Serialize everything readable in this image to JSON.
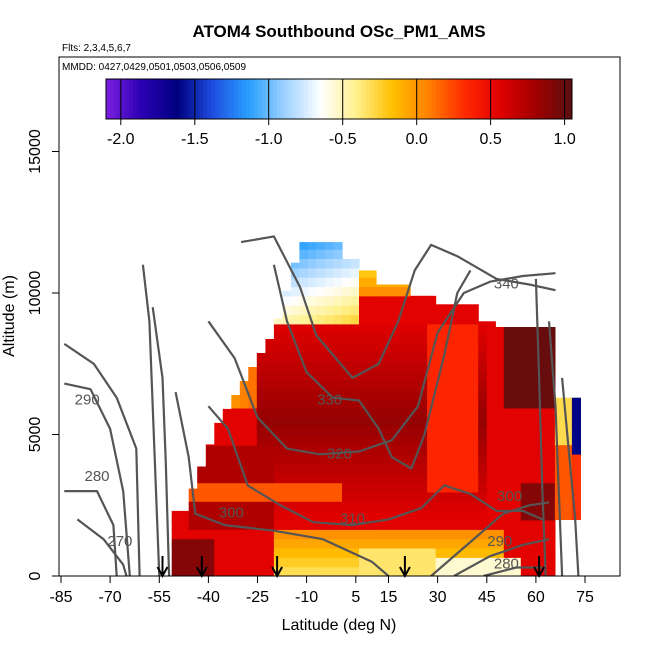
{
  "chart_data": {
    "type": "heatmap",
    "title": "ATOM4 Southbound OSc_PM1_AMS",
    "annotations": [
      "Flts: 2,3,4,5,6,7",
      "MMDD: 0427,0429,0501,0503,0506,0509"
    ],
    "xlabel": "Latitude (deg N)",
    "ylabel": "Altitude (m)",
    "xlim": [
      -85,
      85
    ],
    "ylim": [
      0,
      17500
    ],
    "x_ticks": [
      -85,
      -70,
      -55,
      -40,
      -25,
      -10,
      5,
      15,
      30,
      45,
      60,
      75
    ],
    "y_ticks": [
      0,
      5000,
      10000,
      15000
    ],
    "colorbar": {
      "ticks": [
        "-2.0",
        "-1.5",
        "-1.0",
        "-0.5",
        "0.0",
        "0.5",
        "1.0"
      ],
      "range": [
        -2.1,
        1.05
      ],
      "colors": [
        "#7b1fe0",
        "#2a00b4",
        "#000080",
        "#1f4fe0",
        "#2aa0ff",
        "#9fd2ff",
        "#ffffff",
        "#fff08a",
        "#ffc000",
        "#ff8000",
        "#ff2a00",
        "#e00000",
        "#a00000",
        "#5a1010"
      ]
    },
    "profile_latitudes": [
      -54,
      -42,
      -19,
      20,
      61
    ],
    "contours": [
      {
        "label": "270",
        "lat": -67,
        "alt": 1200
      },
      {
        "label": "280",
        "lat": -74,
        "alt": 3500
      },
      {
        "label": "290",
        "lat": -77,
        "alt": 6200
      },
      {
        "label": "300",
        "lat": -33,
        "alt": 2200
      },
      {
        "label": "310",
        "lat": 4,
        "alt": 2000
      },
      {
        "label": "320",
        "lat": 0,
        "alt": 4300
      },
      {
        "label": "330",
        "lat": -3,
        "alt": 6200
      },
      {
        "label": "340",
        "lat": 51,
        "alt": 10300
      },
      {
        "label": "300",
        "lat": 52,
        "alt": 2800
      },
      {
        "label": "290",
        "lat": 49,
        "alt": 1200
      },
      {
        "label": "280",
        "lat": 51,
        "alt": 400
      }
    ]
  }
}
